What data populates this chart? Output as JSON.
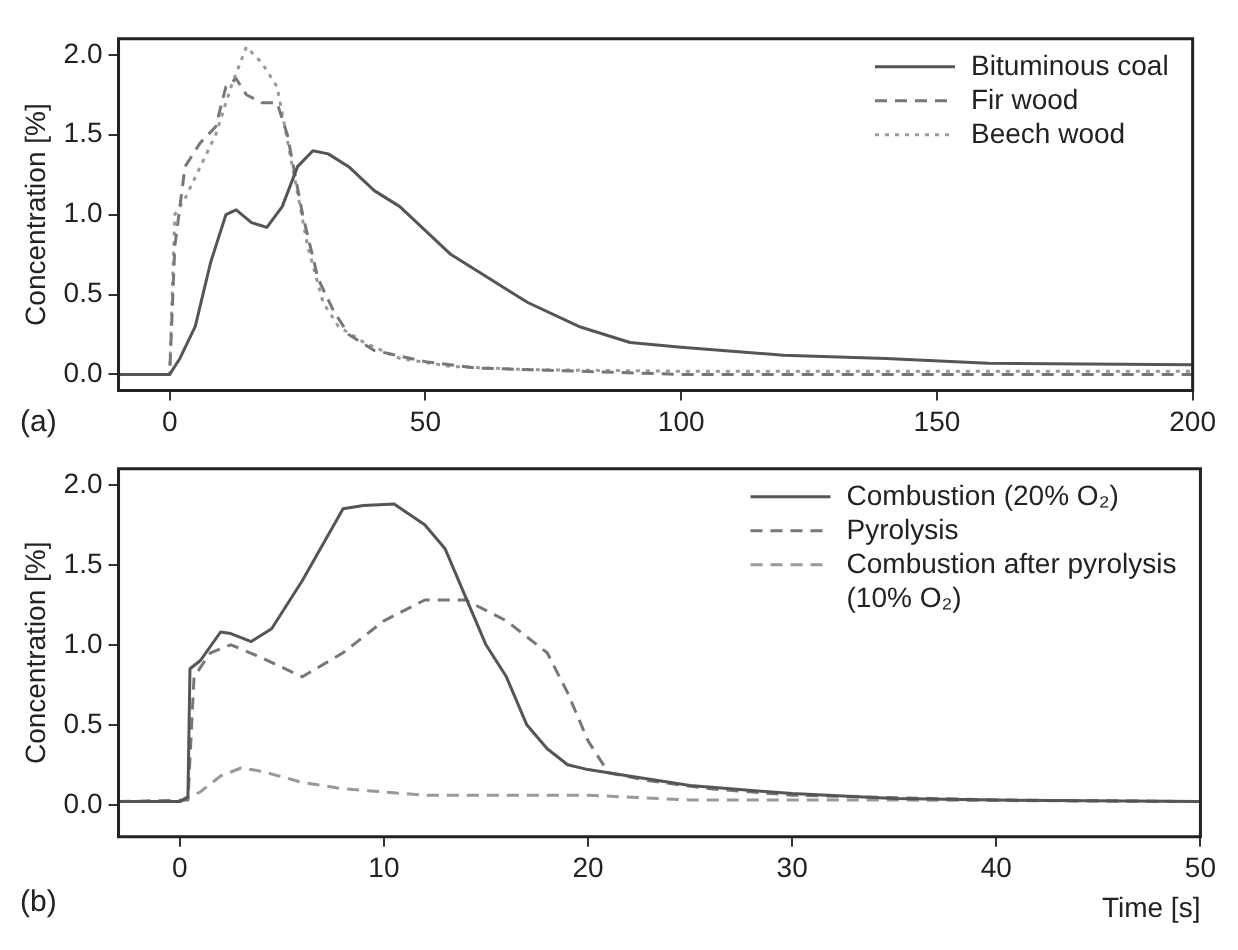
{
  "chart_data": [
    {
      "type": "line",
      "ylabel": "Concentration [%]",
      "annotations": [
        "(a)"
      ],
      "xlim": [
        -10,
        200
      ],
      "xticks": [
        0,
        50,
        100,
        150,
        200
      ],
      "ylim": [
        -0.1,
        2.1
      ],
      "yticks": [
        {
          "value": 0,
          "label": "0.0"
        },
        {
          "value": 0.5,
          "label": "0.5"
        },
        {
          "value": 1,
          "label": "1.0"
        },
        {
          "value": 1.5,
          "label": "1.5"
        },
        {
          "value": 2,
          "label": "2.0"
        }
      ],
      "legend": "top right",
      "grid": false,
      "marker": "none",
      "series": [
        {
          "name": "Bituminous coal",
          "color": "#555555",
          "line_style": "solid",
          "x": [
            -10,
            0,
            2,
            5,
            8,
            11,
            13,
            16,
            19,
            22,
            25,
            28,
            31,
            35,
            40,
            45,
            50,
            55,
            60,
            70,
            80,
            90,
            100,
            120,
            140,
            160,
            200
          ],
          "values": [
            0,
            0,
            0.1,
            0.3,
            0.7,
            1.0,
            1.03,
            0.95,
            0.92,
            1.05,
            1.3,
            1.4,
            1.38,
            1.3,
            1.15,
            1.05,
            0.9,
            0.75,
            0.65,
            0.45,
            0.3,
            0.2,
            0.17,
            0.12,
            0.1,
            0.07,
            0.06
          ]
        },
        {
          "name": "Fir wood",
          "color": "#777777",
          "line_style": "dashed",
          "x": [
            -10,
            0,
            1,
            3,
            6,
            9,
            11,
            13,
            15,
            18,
            21,
            23,
            26,
            29,
            32,
            35,
            40,
            50,
            60,
            80,
            100,
            200
          ],
          "values": [
            0,
            0,
            0.8,
            1.3,
            1.45,
            1.55,
            1.8,
            1.85,
            1.75,
            1.7,
            1.7,
            1.5,
            1.0,
            0.6,
            0.4,
            0.25,
            0.15,
            0.08,
            0.04,
            0.02,
            0,
            0
          ]
        },
        {
          "name": "Beech wood",
          "color": "#999999",
          "line_style": "dotted",
          "x": [
            -10,
            0,
            1,
            3,
            6,
            9,
            12,
            15,
            18,
            21,
            24,
            27,
            30,
            33,
            38,
            45,
            55,
            70,
            100,
            200
          ],
          "values": [
            0,
            0,
            1.0,
            1.1,
            1.3,
            1.5,
            1.8,
            2.05,
            1.95,
            1.8,
            1.3,
            0.8,
            0.45,
            0.3,
            0.2,
            0.1,
            0.05,
            0.03,
            0.02,
            0.02
          ]
        }
      ]
    },
    {
      "type": "line",
      "xlabel": "Time [s]",
      "ylabel": "Concentration [%]",
      "annotations": [
        "(b)"
      ],
      "xlim": [
        -3,
        50
      ],
      "xticks": [
        0,
        10,
        20,
        30,
        40,
        50
      ],
      "ylim": [
        -0.2,
        2.1
      ],
      "yticks": [
        {
          "value": 0,
          "label": "0.0"
        },
        {
          "value": 0.5,
          "label": "0.5"
        },
        {
          "value": 1,
          "label": "1.0"
        },
        {
          "value": 1.5,
          "label": "1.5"
        },
        {
          "value": 2,
          "label": "2.0"
        }
      ],
      "legend": "top right",
      "grid": false,
      "marker": "none",
      "series": [
        {
          "name": "Combustion (20% O₂)",
          "color": "#555555",
          "line_style": "solid",
          "x": [
            -3,
            0,
            0.4,
            0.5,
            1,
            2,
            2.5,
            3.5,
            4.5,
            6,
            8,
            9,
            10.5,
            12,
            13,
            14,
            15,
            16,
            17,
            18,
            19,
            20,
            22,
            25,
            30,
            35,
            40,
            50
          ],
          "values": [
            0.02,
            0.02,
            0.05,
            0.85,
            0.9,
            1.08,
            1.07,
            1.02,
            1.1,
            1.4,
            1.85,
            1.87,
            1.88,
            1.75,
            1.6,
            1.3,
            1.0,
            0.8,
            0.5,
            0.35,
            0.25,
            0.22,
            0.18,
            0.12,
            0.07,
            0.04,
            0.03,
            0.02
          ]
        },
        {
          "name": "Pyrolysis",
          "color": "#777777",
          "line_style": "dashed",
          "x": [
            -3,
            0.4,
            0.7,
            1.5,
            2.5,
            4,
            6,
            8,
            10,
            12,
            14,
            16,
            18,
            19,
            20,
            21,
            23,
            26,
            30,
            40,
            50
          ],
          "values": [
            0.02,
            0.03,
            0.8,
            0.95,
            1.0,
            0.92,
            0.8,
            0.95,
            1.15,
            1.28,
            1.28,
            1.15,
            0.95,
            0.7,
            0.4,
            0.2,
            0.15,
            0.1,
            0.06,
            0.03,
            0.02
          ]
        },
        {
          "name": "Combustion after pyrolysis (10% O₂)",
          "color": "#999999",
          "line_style": "dashed",
          "x": [
            -3,
            0,
            1,
            2,
            3,
            4,
            6,
            8,
            10,
            12,
            20,
            25,
            35,
            50
          ],
          "values": [
            0.02,
            0.02,
            0.08,
            0.18,
            0.23,
            0.21,
            0.14,
            0.1,
            0.08,
            0.06,
            0.06,
            0.03,
            0.03,
            0.02
          ]
        }
      ]
    }
  ]
}
